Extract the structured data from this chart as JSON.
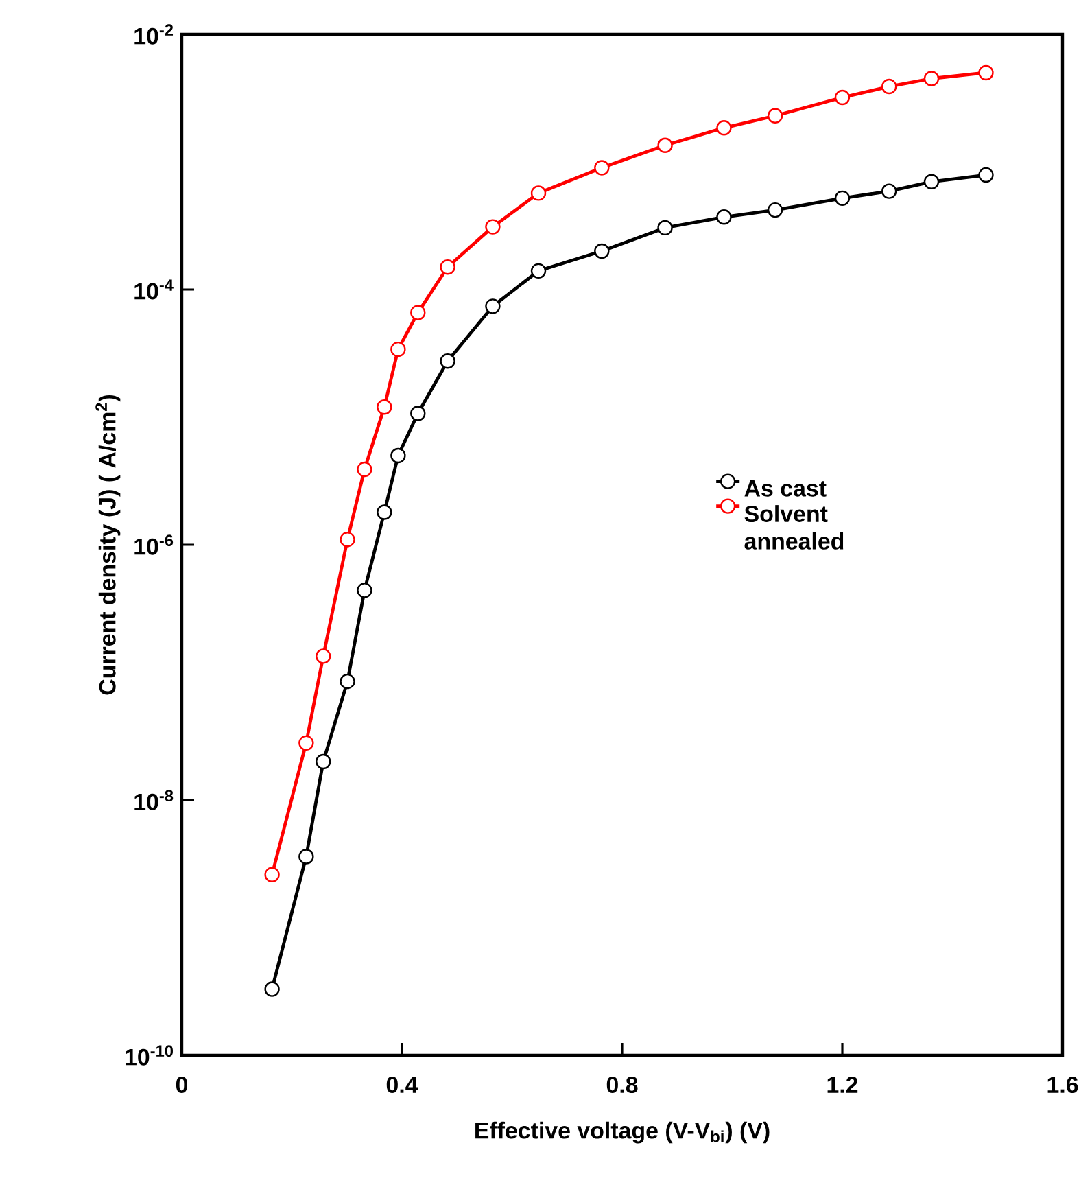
{
  "chart_data": {
    "type": "line",
    "xlabel": "Effective voltage (V-V$_{bi}$) (V)",
    "ylabel": "Current density (J) ( A/cm$^{2}$)",
    "log": "y",
    "marker": "circle",
    "line_style": "solid",
    "legend": "right",
    "grid": false,
    "xlim": [
      0,
      1.6
    ],
    "xticks": [
      0,
      0.4,
      0.8,
      1.2,
      1.6
    ],
    "ylim": [
      1e-10,
      0.01
    ],
    "yticks": [
      {
        "value": 1e-10,
        "label": "10$^{-10}$"
      },
      {
        "value": 1e-08,
        "label": "10$^{-8}$"
      },
      {
        "value": 1e-06,
        "label": "10$^{-6}$"
      },
      {
        "value": 0.0001,
        "label": "10$^{-4}$"
      },
      {
        "value": 0.01,
        "label": "10$^{-2}$"
      }
    ],
    "x": [
      0.164,
      0.226,
      0.257,
      0.301,
      0.332,
      0.368,
      0.393,
      0.429,
      0.483,
      0.565,
      0.648,
      0.763,
      0.878,
      0.985,
      1.078,
      1.2,
      1.285,
      1.362,
      1.461
    ],
    "series": [
      {
        "name": "As cast",
        "color": "#000000",
        "values": [
          3.3e-10,
          3.6e-09,
          2e-08,
          8.5e-08,
          4.4e-07,
          1.8e-06,
          5e-06,
          1.07e-05,
          2.75e-05,
          7.4e-05,
          0.00014,
          0.0002,
          0.000305,
          0.00037,
          0.00042,
          0.00052,
          0.00059,
          0.0007,
          0.00079
        ]
      },
      {
        "name": "Solvent annealed",
        "color": "#ff0000",
        "values": [
          2.6e-09,
          2.8e-08,
          1.34e-07,
          1.1e-06,
          3.9e-06,
          1.2e-05,
          3.4e-05,
          6.6e-05,
          0.00015,
          0.00031,
          0.00057,
          0.0009,
          0.00135,
          0.00185,
          0.0023,
          0.0032,
          0.0039,
          0.0045,
          0.005
        ]
      }
    ]
  }
}
